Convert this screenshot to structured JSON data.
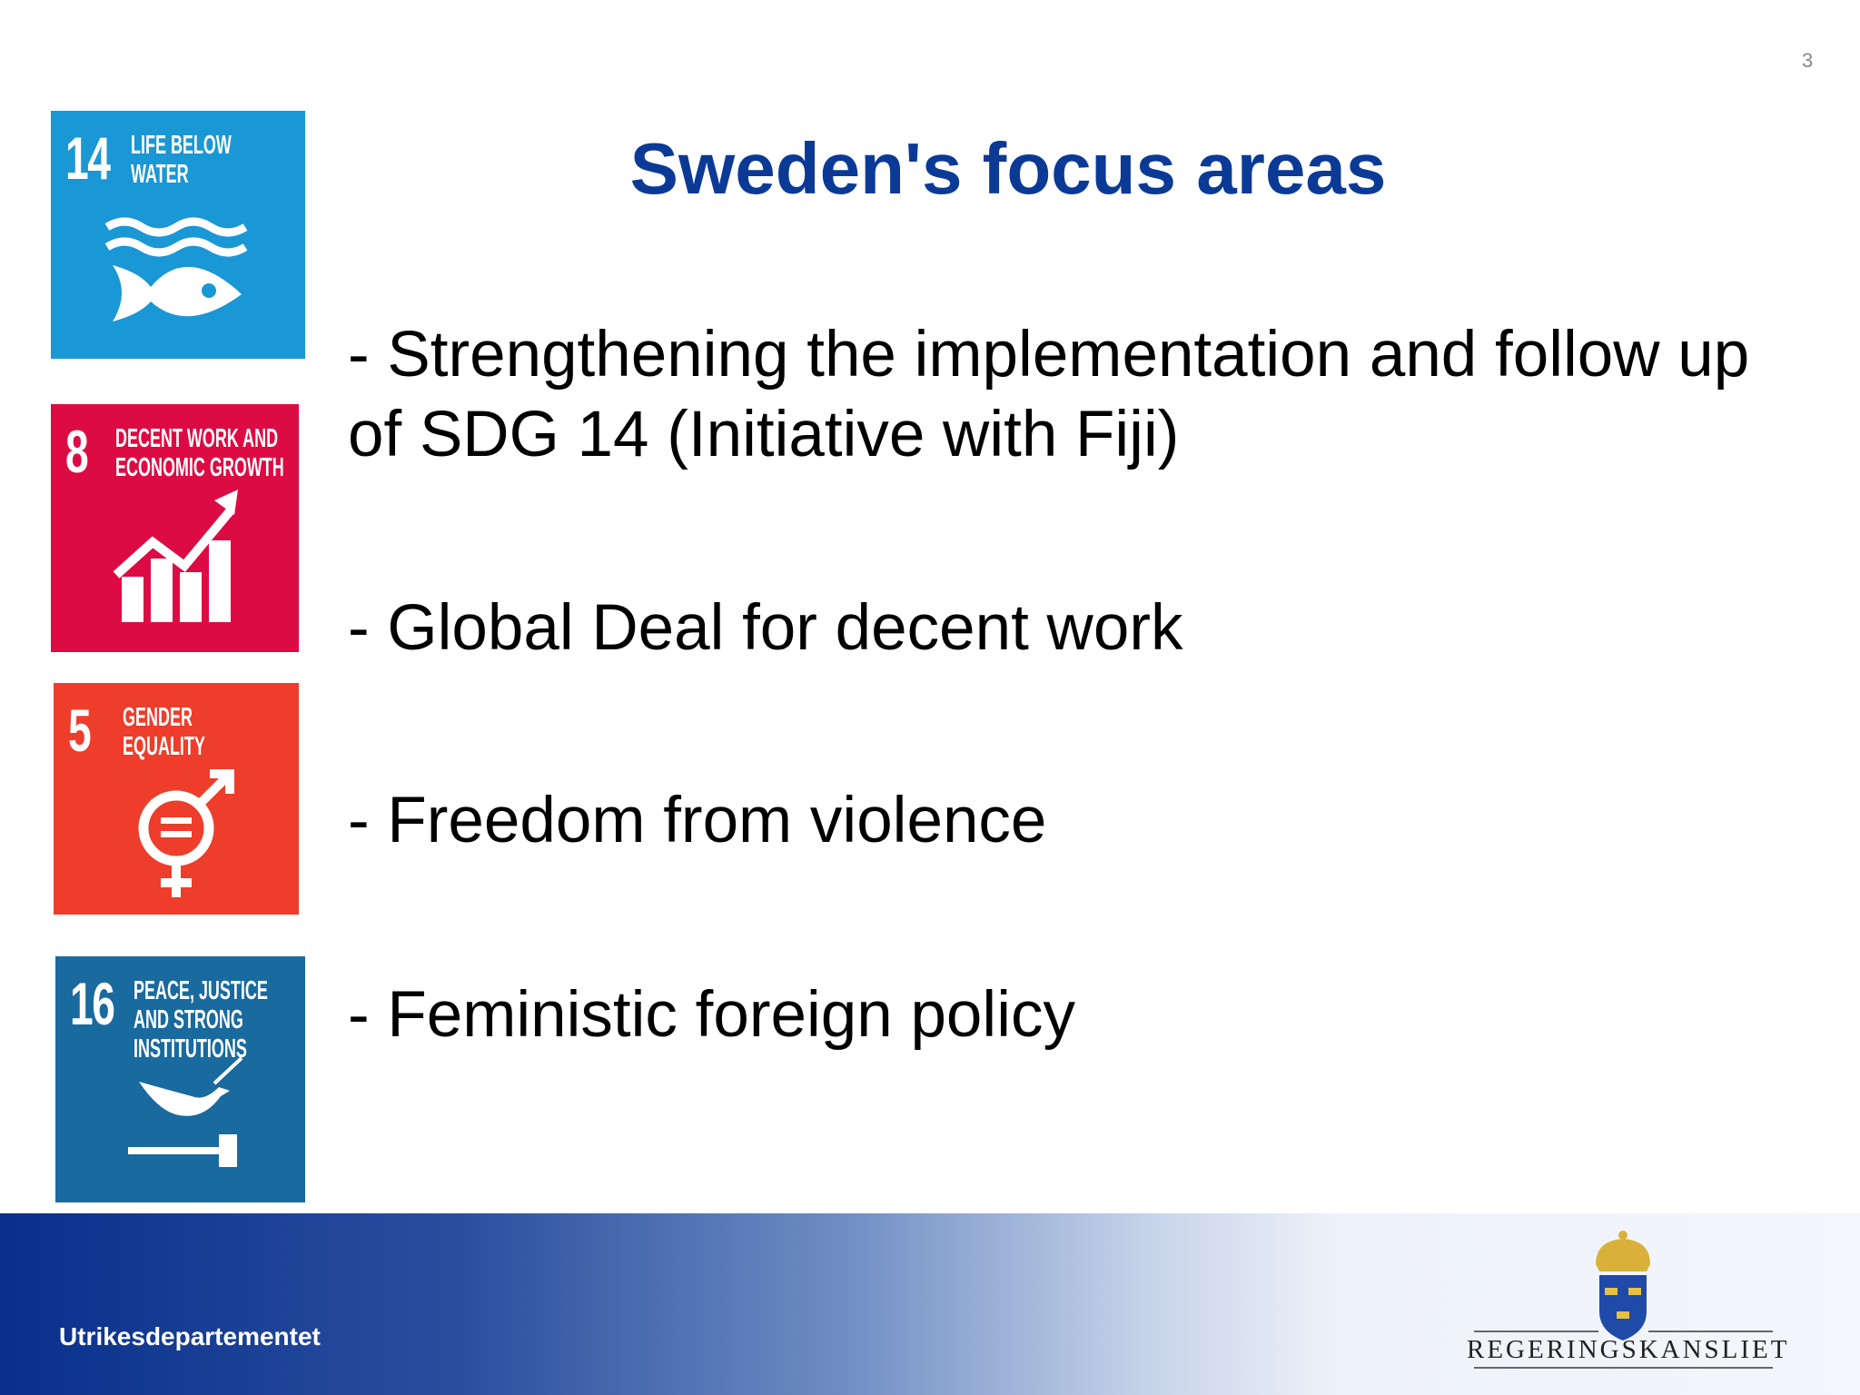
{
  "page_number": "3",
  "title": "Sweden's focus areas",
  "sdg_tiles": [
    {
      "number": "14",
      "label_lines": [
        "LIFE BELOW",
        "WATER"
      ],
      "color": "#1a97d5",
      "icon": "fish-waves-icon"
    },
    {
      "number": "8",
      "label_lines": [
        "DECENT WORK AND",
        "ECONOMIC GROWTH"
      ],
      "color": "#dd0b43",
      "icon": "growth-chart-icon"
    },
    {
      "number": "5",
      "label_lines": [
        "GENDER",
        "EQUALITY"
      ],
      "color": "#ee3d2b",
      "icon": "gender-equality-icon"
    },
    {
      "number": "16",
      "label_lines": [
        "PEACE, JUSTICE",
        "AND STRONG",
        "INSTITUTIONS"
      ],
      "color": "#186a9f",
      "icon": "dove-gavel-icon"
    }
  ],
  "bullets": [
    {
      "line1": "- Strengthening the implementation and follow up",
      "line2": "of SDG 14 (Initiative with Fiji)"
    },
    {
      "line1": "- Global Deal for decent work"
    },
    {
      "line1": "- Freedom from violence"
    },
    {
      "line1": "- Feministic foreign policy"
    }
  ],
  "footer": {
    "department": "Utrikesdepartementet",
    "logo_text": "REGERINGSKANSLIET"
  }
}
